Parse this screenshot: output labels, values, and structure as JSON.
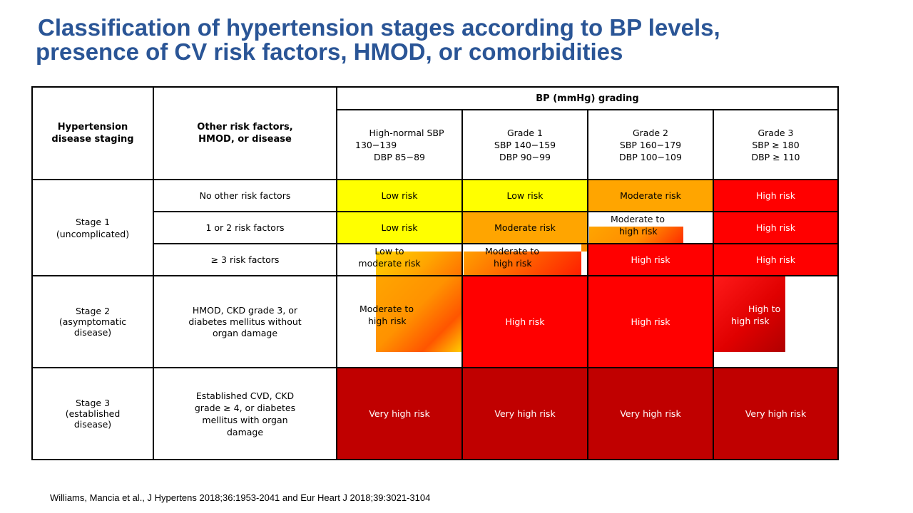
{
  "title": {
    "line1": "Classification of hypertension stages according to BP levels,",
    "line2": "presence of CV risk factors, HMOD, or comorbidities"
  },
  "table": {
    "header": {
      "staging_l1": "Hypertension",
      "staging_l2": "disease staging",
      "risk_l1": "Other risk factors,",
      "risk_l2": "HMOD, or disease",
      "bp_grading": "BP (mmHg) grading"
    },
    "grades": [
      {
        "l1": "High-normal  SBP",
        "l2": "130−139",
        "l3": "DBP 85−89"
      },
      {
        "l1": "Grade 1",
        "l2": "SBP 140−159",
        "l3": "DBP 90−99"
      },
      {
        "l1": "Grade 2",
        "l2": "SBP 160−179",
        "l3": "DBP 100−109"
      },
      {
        "l1": "Grade 3",
        "l2": "SBP ≥ 180",
        "l3": "DBP ≥ 110"
      }
    ],
    "stages": [
      {
        "l1": "Stage 1",
        "l2": "(uncomplicated)"
      },
      {
        "l1": "Stage 2",
        "l2": "(asymptomatic",
        "l3": "disease)"
      },
      {
        "l1": "Stage 3",
        "l2": "(established",
        "l3": "disease)"
      }
    ],
    "risk_factors": {
      "none": "No other risk factors",
      "one_two": "1 or 2 risk factors",
      "three_plus": "≥ 3 risk factors",
      "stage2_l1": "HMOD, CKD grade 3, or",
      "stage2_l2": "diabetes mellitus  without",
      "stage2_l3": "organ damage",
      "stage3_l1": "Established CVD,  CKD",
      "stage3_l2": "grade ≥ 4,  or  diabetes",
      "stage3_l3": "mellitus  with organ",
      "stage3_l4": "damage"
    },
    "risk": {
      "low": "Low risk",
      "moderate": "Moderate risk",
      "high": "High risk",
      "very_high": "Very high risk",
      "mod_high_l1": "Moderate to",
      "mod_high_l2": "high risk",
      "low_mod_l1": "Low to",
      "low_mod_l2": "moderate risk",
      "high_to_l1": "High to",
      "high_to_l2": "high risk"
    }
  },
  "citation": "Williams, Mancia et al., J Hypertens 2018;36:1953-2041 and Eur Heart J 2018;39:3021-3104",
  "colors": {
    "title": "#2a5596",
    "yellow": "#ffff00",
    "orange": "#ffa500",
    "red": "#ff0000",
    "dark_red": "#c00000"
  }
}
